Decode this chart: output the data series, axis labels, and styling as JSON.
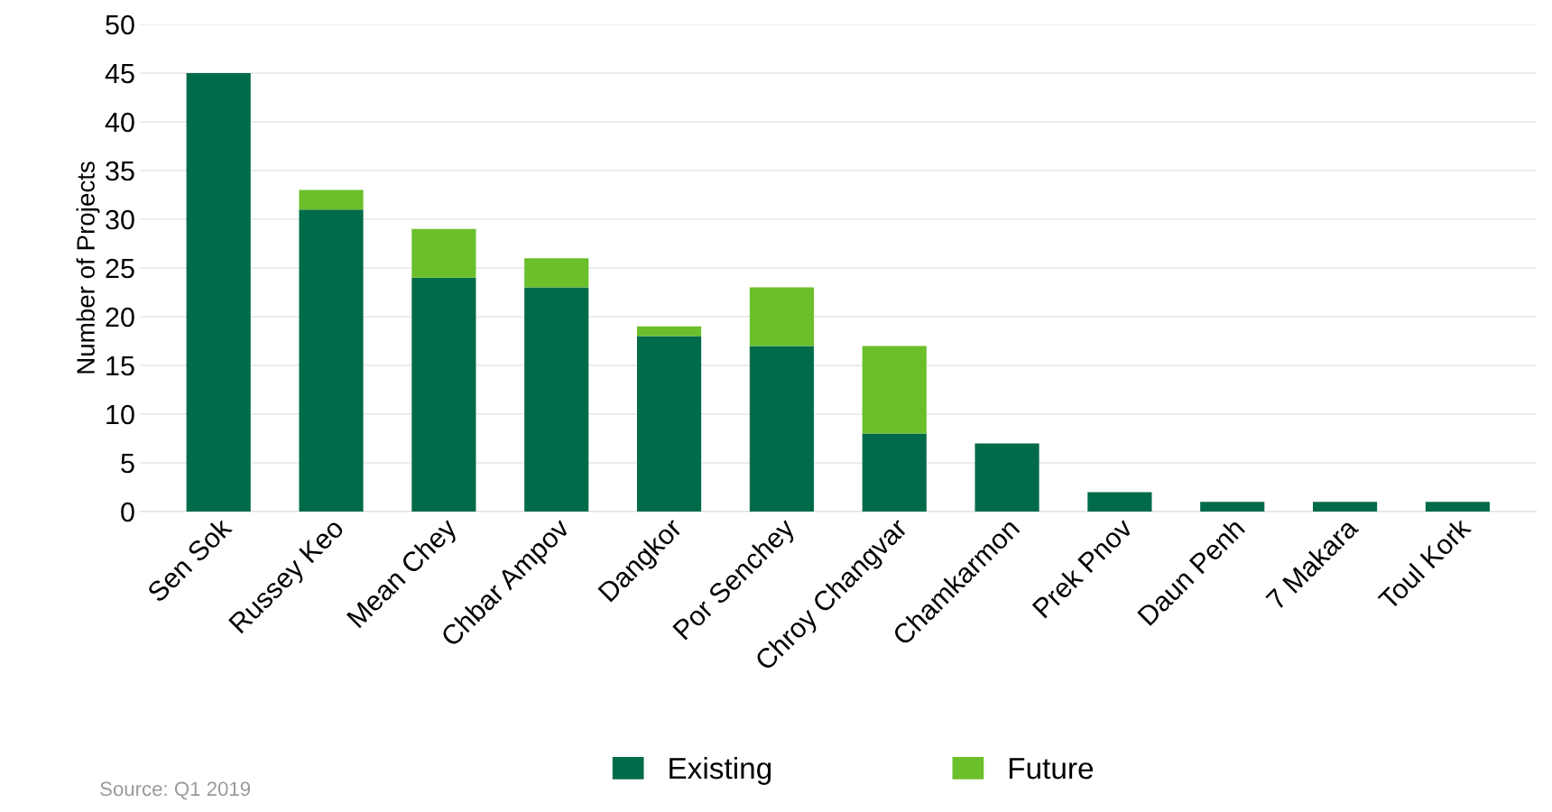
{
  "chart_data": {
    "type": "bar",
    "stacked": true,
    "ylabel": "Number of Projects",
    "categories": [
      "Sen Sok",
      "Russey Keo",
      "Mean Chey",
      "Chbar Ampov",
      "Dangkor",
      "Por Senchey",
      "Chroy Changvar",
      "Chamkarmon",
      "Prek Pnov",
      "Daun Penh",
      "7 Makara",
      "Toul Kork"
    ],
    "series": [
      {
        "name": "Existing",
        "color": "#006b4a",
        "values": [
          45,
          31,
          24,
          23,
          18,
          17,
          8,
          7,
          2,
          1,
          1,
          1
        ]
      },
      {
        "name": "Future",
        "color": "#6abf2a",
        "values": [
          0,
          2,
          5,
          3,
          1,
          6,
          9,
          0,
          0,
          0,
          0,
          0
        ]
      }
    ],
    "ylim": [
      0,
      50
    ],
    "yticks": [
      0,
      5,
      10,
      15,
      20,
      25,
      30,
      35,
      40,
      45,
      50
    ],
    "grid": "y",
    "legend": "bottom",
    "annotations": [
      "Source: Q1 2019"
    ]
  }
}
